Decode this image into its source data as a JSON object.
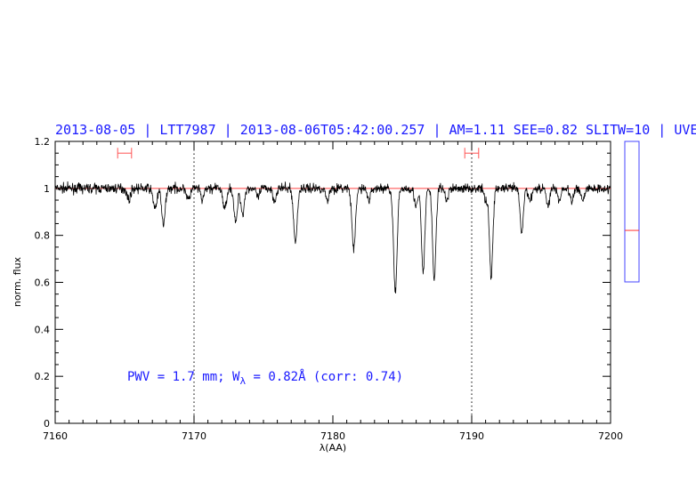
{
  "chart_data": {
    "type": "line",
    "title": "2013-08-05 | LTT7987 | 2013-08-06T05:42:00.257 | AM=1.11 SEE=0.82 SLITW=10 | UVE",
    "xlabel": "λ(AA)",
    "ylabel": "norm. flux",
    "xlim": [
      7160,
      7200
    ],
    "ylim": [
      0,
      1.2
    ],
    "x_ticks": [
      7160,
      7170,
      7180,
      7190,
      7200
    ],
    "y_ticks": [
      0,
      0.2,
      0.4,
      0.6,
      0.8,
      1,
      1.2
    ],
    "annotation": {
      "text_before": "PWV = 1.7 mm; W",
      "subscript": "λ",
      "text_after": " = 0.82Å (corr: 0.74)"
    },
    "continuum_level": 1.0,
    "vertical_markers": [
      7170,
      7190
    ],
    "continuum_windows": [
      [
        7164.5,
        7165.5
      ],
      [
        7189.5,
        7190.5
      ]
    ],
    "spectrum_continuum": 1.0,
    "absorption_lines": [
      {
        "x": 7165.3,
        "depth": 0.05,
        "width": 0.12
      },
      {
        "x": 7167.2,
        "depth": 0.08,
        "width": 0.15
      },
      {
        "x": 7167.8,
        "depth": 0.16,
        "width": 0.12
      },
      {
        "x": 7169.6,
        "depth": 0.05,
        "width": 0.12
      },
      {
        "x": 7170.6,
        "depth": 0.05,
        "width": 0.12
      },
      {
        "x": 7172.2,
        "depth": 0.09,
        "width": 0.12
      },
      {
        "x": 7173.0,
        "depth": 0.15,
        "width": 0.12
      },
      {
        "x": 7173.5,
        "depth": 0.11,
        "width": 0.12
      },
      {
        "x": 7174.6,
        "depth": 0.04,
        "width": 0.12
      },
      {
        "x": 7175.8,
        "depth": 0.05,
        "width": 0.12
      },
      {
        "x": 7177.3,
        "depth": 0.23,
        "width": 0.13
      },
      {
        "x": 7179.6,
        "depth": 0.05,
        "width": 0.12
      },
      {
        "x": 7181.5,
        "depth": 0.26,
        "width": 0.13
      },
      {
        "x": 7182.6,
        "depth": 0.05,
        "width": 0.12
      },
      {
        "x": 7184.5,
        "depth": 0.44,
        "width": 0.13
      },
      {
        "x": 7186.0,
        "depth": 0.08,
        "width": 0.12
      },
      {
        "x": 7186.5,
        "depth": 0.36,
        "width": 0.12
      },
      {
        "x": 7187.3,
        "depth": 0.39,
        "width": 0.12
      },
      {
        "x": 7188.2,
        "depth": 0.05,
        "width": 0.12
      },
      {
        "x": 7191.0,
        "depth": 0.05,
        "width": 0.12
      },
      {
        "x": 7191.4,
        "depth": 0.38,
        "width": 0.12
      },
      {
        "x": 7193.6,
        "depth": 0.19,
        "width": 0.12
      },
      {
        "x": 7194.2,
        "depth": 0.05,
        "width": 0.12
      },
      {
        "x": 7195.5,
        "depth": 0.07,
        "width": 0.12
      },
      {
        "x": 7196.3,
        "depth": 0.05,
        "width": 0.12
      },
      {
        "x": 7197.2,
        "depth": 0.06,
        "width": 0.12
      },
      {
        "x": 7198.0,
        "depth": 0.05,
        "width": 0.12
      }
    ],
    "noise_amplitude": 0.02,
    "side_indicator": {
      "ylim": [
        0.6,
        1.2
      ],
      "value": 0.82
    },
    "colors": {
      "spectrum": "#000000",
      "continuum": "#ff4444",
      "title": "#1a1aff",
      "annotation": "#1a1aff",
      "marker": "#ff5555",
      "indicator_box": "#4444ff",
      "indicator_value": "#ff3333"
    }
  }
}
